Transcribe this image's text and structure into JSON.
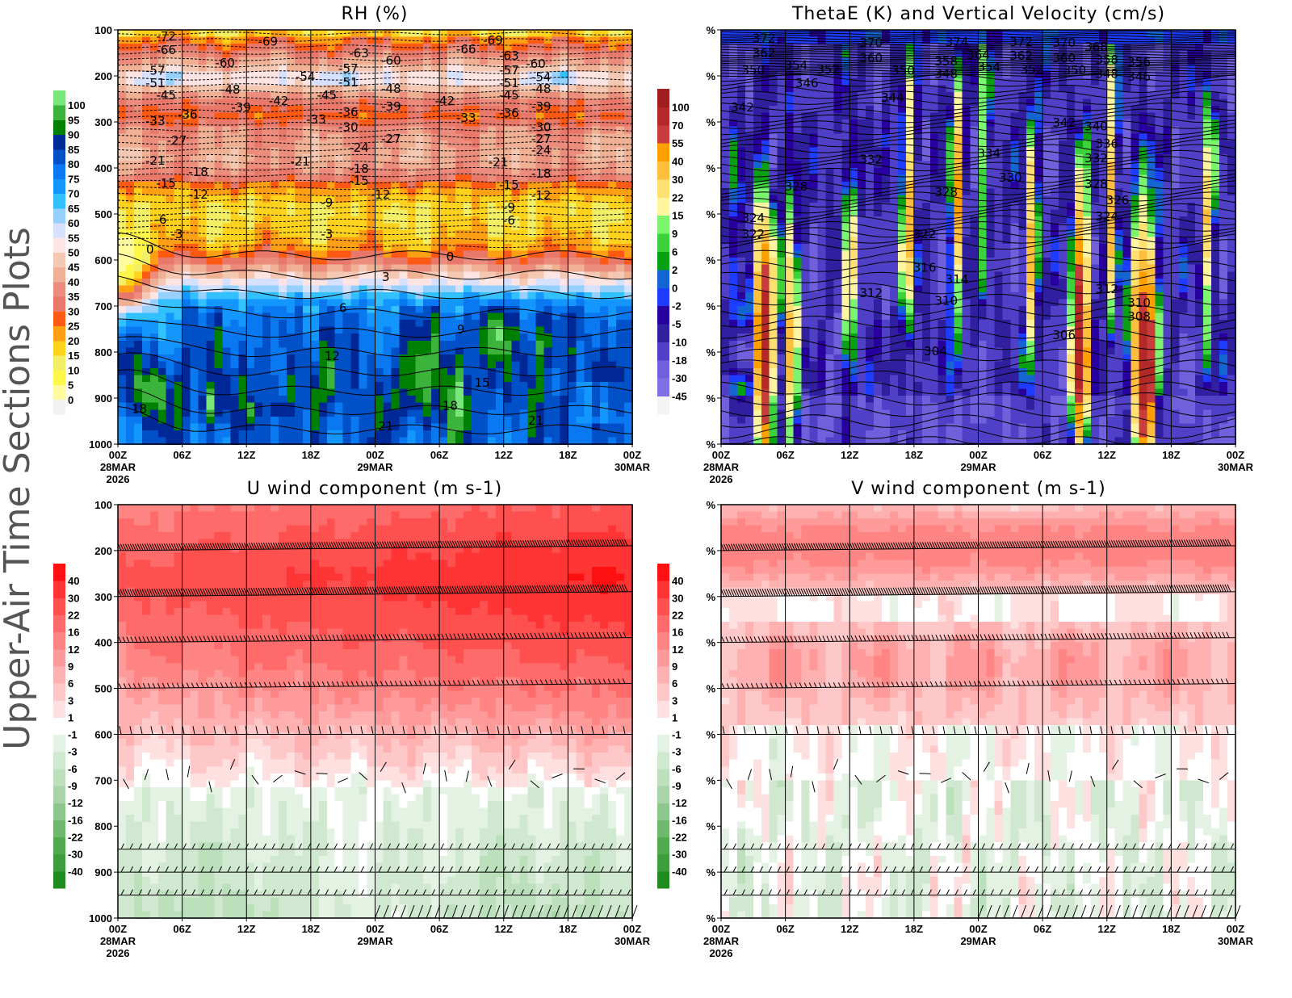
{
  "side_title": "Upper-Air Time Sections Plots",
  "x_axis": {
    "range": [
      "00Z 28MAR 2026",
      "00Z 30MAR 2026"
    ],
    "ticks": [
      {
        "time": "28MAR 00:00Z",
        "label": "00Z",
        "date": "28MAR",
        "year": "2026"
      },
      {
        "time": "28MAR 06:00Z",
        "label": "06Z"
      },
      {
        "time": "28MAR 12:00Z",
        "label": "12Z"
      },
      {
        "time": "28MAR 18:00Z",
        "label": "18Z"
      },
      {
        "time": "29MAR 00:00Z",
        "label": "00Z",
        "date": "29MAR"
      },
      {
        "time": "29MAR 06:00Z",
        "label": "06Z"
      },
      {
        "time": "29MAR 12:00Z",
        "label": "12Z"
      },
      {
        "time": "29MAR 18:00Z",
        "label": "18Z"
      },
      {
        "time": "30MAR 00:00Z",
        "label": "00Z",
        "date": "30MAR"
      }
    ]
  },
  "chart_data": [
    {
      "id": "rh",
      "type": "heatmap",
      "title": "RH (%)",
      "ylim": [
        1000,
        100
      ],
      "y_inverted": true,
      "y_ticks": [
        "100",
        "200",
        "300",
        "400",
        "500",
        "600",
        "700",
        "800",
        "900",
        "1000"
      ],
      "grid": "vertical lines every 6h",
      "colorbar": {
        "levels": [
          "0",
          "5",
          "10",
          "15",
          "20",
          "25",
          "30",
          "35",
          "40",
          "45",
          "50",
          "55",
          "60",
          "65",
          "70",
          "75",
          "80",
          "85",
          "90",
          "95",
          "100"
        ],
        "colors": [
          "#f2f2f2",
          "#fffb9e",
          "#fff64a",
          "#f2ee66",
          "#ffd21e",
          "#ffa014",
          "#ff5a14",
          "#e8786a",
          "#eb8c7c",
          "#f0b094",
          "#f5c8b4",
          "#ffe4e4",
          "#d6e0ff",
          "#96d0ff",
          "#32c0ff",
          "#1496ff",
          "#0a78f0",
          "#0050c8",
          "#002896",
          "#008000",
          "#3cb43c",
          "#78e678"
        ]
      },
      "contour_labels": [
        {
          "text": "-72",
          "time": "28MAR 04:30Z",
          "hPa": 114
        },
        {
          "text": "-66",
          "time": "28MAR 04:30Z",
          "hPa": 144
        },
        {
          "text": "-69",
          "time": "28MAR 14:00Z",
          "hPa": 125
        },
        {
          "text": "-63",
          "time": "28MAR 22:30Z",
          "hPa": 151
        },
        {
          "text": "-60",
          "time": "29MAR 01:30Z",
          "hPa": 167
        },
        {
          "text": "-66",
          "time": "29MAR 08:30Z",
          "hPa": 142
        },
        {
          "text": "-69",
          "time": "29MAR 11:00Z",
          "hPa": 123
        },
        {
          "text": "-63",
          "time": "29MAR 12:30Z",
          "hPa": 156
        },
        {
          "text": "-60",
          "time": "29MAR 15:00Z",
          "hPa": 174
        },
        {
          "text": "-57",
          "time": "28MAR 03:30Z",
          "hPa": 189
        },
        {
          "text": "-51",
          "time": "28MAR 03:30Z",
          "hPa": 216
        },
        {
          "text": "-60",
          "time": "28MAR 10:00Z",
          "hPa": 172
        },
        {
          "text": "-54",
          "time": "28MAR 17:30Z",
          "hPa": 202
        },
        {
          "text": "-57",
          "time": "28MAR 21:30Z",
          "hPa": 184
        },
        {
          "text": "-51",
          "time": "28MAR 21:30Z",
          "hPa": 214
        },
        {
          "text": "-48",
          "time": "28MAR 10:30Z",
          "hPa": 230
        },
        {
          "text": "-48",
          "time": "29MAR 01:30Z",
          "hPa": 228
        },
        {
          "text": "-57",
          "time": "29MAR 12:30Z",
          "hPa": 188
        },
        {
          "text": "-54",
          "time": "29MAR 15:30Z",
          "hPa": 203
        },
        {
          "text": "-51",
          "time": "29MAR 12:30Z",
          "hPa": 216
        },
        {
          "text": "-48",
          "time": "29MAR 15:30Z",
          "hPa": 228
        },
        {
          "text": "-45",
          "time": "28MAR 04:30Z",
          "hPa": 242
        },
        {
          "text": "-45",
          "time": "28MAR 19:30Z",
          "hPa": 242
        },
        {
          "text": "-45",
          "time": "29MAR 12:30Z",
          "hPa": 242
        },
        {
          "text": "-42",
          "time": "28MAR 15:00Z",
          "hPa": 254
        },
        {
          "text": "-42",
          "time": "29MAR 06:30Z",
          "hPa": 254
        },
        {
          "text": "-39",
          "time": "28MAR 11:30Z",
          "hPa": 268
        },
        {
          "text": "-39",
          "time": "29MAR 01:30Z",
          "hPa": 267
        },
        {
          "text": "-39",
          "time": "29MAR 15:30Z",
          "hPa": 267
        },
        {
          "text": "-36",
          "time": "28MAR 06:30Z",
          "hPa": 284
        },
        {
          "text": "-36",
          "time": "28MAR 21:30Z",
          "hPa": 279
        },
        {
          "text": "-36",
          "time": "29MAR 12:30Z",
          "hPa": 281
        },
        {
          "text": "-33",
          "time": "28MAR 03:30Z",
          "hPa": 298
        },
        {
          "text": "-33",
          "time": "28MAR 18:30Z",
          "hPa": 295
        },
        {
          "text": "-33",
          "time": "29MAR 08:30Z",
          "hPa": 291
        },
        {
          "text": "-30",
          "time": "28MAR 21:30Z",
          "hPa": 311
        },
        {
          "text": "-30",
          "time": "29MAR 15:30Z",
          "hPa": 311
        },
        {
          "text": "-27",
          "time": "28MAR 05:30Z",
          "hPa": 340
        },
        {
          "text": "-27",
          "time": "29MAR 01:30Z",
          "hPa": 337
        },
        {
          "text": "-27",
          "time": "29MAR 15:30Z",
          "hPa": 337
        },
        {
          "text": "-24",
          "time": "28MAR 22:30Z",
          "hPa": 356
        },
        {
          "text": "-24",
          "time": "29MAR 15:30Z",
          "hPa": 361
        },
        {
          "text": "-21",
          "time": "28MAR 03:30Z",
          "hPa": 384
        },
        {
          "text": "-21",
          "time": "28MAR 17:00Z",
          "hPa": 386
        },
        {
          "text": "-21",
          "time": "29MAR 11:30Z",
          "hPa": 388
        },
        {
          "text": "-18",
          "time": "28MAR 07:30Z",
          "hPa": 409
        },
        {
          "text": "-18",
          "time": "28MAR 22:30Z",
          "hPa": 402
        },
        {
          "text": "-18",
          "time": "29MAR 15:30Z",
          "hPa": 412
        },
        {
          "text": "-15",
          "time": "28MAR 04:30Z",
          "hPa": 433
        },
        {
          "text": "-15",
          "time": "28MAR 22:30Z",
          "hPa": 428
        },
        {
          "text": "-15",
          "time": "29MAR 12:30Z",
          "hPa": 437
        },
        {
          "text": "-12",
          "time": "28MAR 07:30Z",
          "hPa": 458
        },
        {
          "text": "-12",
          "time": "29MAR 00:30Z",
          "hPa": 458
        },
        {
          "text": "-12",
          "time": "29MAR 15:30Z",
          "hPa": 460
        },
        {
          "text": "-9",
          "time": "28MAR 19:30Z",
          "hPa": 475
        },
        {
          "text": "-9",
          "time": "29MAR 12:30Z",
          "hPa": 486
        },
        {
          "text": "-6",
          "time": "28MAR 04:00Z",
          "hPa": 512
        },
        {
          "text": "-6",
          "time": "29MAR 12:30Z",
          "hPa": 514
        },
        {
          "text": "-3",
          "time": "28MAR 05:30Z",
          "hPa": 544
        },
        {
          "text": "-3",
          "time": "28MAR 19:30Z",
          "hPa": 544
        },
        {
          "text": "0",
          "time": "28MAR 03:00Z",
          "hPa": 577
        },
        {
          "text": "0",
          "time": "29MAR 07:00Z",
          "hPa": 593
        },
        {
          "text": "3",
          "time": "29MAR 01:00Z",
          "hPa": 637
        },
        {
          "text": "6",
          "time": "28MAR 21:00Z",
          "hPa": 704
        },
        {
          "text": "9",
          "time": "29MAR 08:00Z",
          "hPa": 751
        },
        {
          "text": "12",
          "time": "28MAR 20:00Z",
          "hPa": 809
        },
        {
          "text": "15",
          "time": "29MAR 10:00Z",
          "hPa": 867
        },
        {
          "text": "18",
          "time": "28MAR 02:00Z",
          "hPa": 924
        },
        {
          "text": "18",
          "time": "29MAR 07:00Z",
          "hPa": 917
        },
        {
          "text": "21",
          "time": "29MAR 01:00Z",
          "hPa": 961
        },
        {
          "text": "21",
          "time": "29MAR 15:00Z",
          "hPa": 949
        }
      ]
    },
    {
      "id": "thetae",
      "type": "heatmap",
      "title": "ThetaE (K) and Vertical Velocity (cm/s)",
      "ylim": [
        1000,
        100
      ],
      "y_inverted": true,
      "y_ticks": [
        "%",
        "%",
        "%",
        "%",
        "%",
        "%",
        "%",
        "%",
        "%",
        "%"
      ],
      "grid": "vertical lines every 6h",
      "colorbar": {
        "levels": [
          "-45",
          "-30",
          "-18",
          "-10",
          "-5",
          "-2",
          "0",
          "2",
          "6",
          "9",
          "15",
          "22",
          "30",
          "40",
          "55",
          "70",
          "100"
        ],
        "colors": [
          "#f4f4f4",
          "#8070e6",
          "#7060dc",
          "#5040c8",
          "#3020a0",
          "#2800a0",
          "#1e3cff",
          "#1464d2",
          "#0aa014",
          "#3cd23c",
          "#7cf56e",
          "#fff5a0",
          "#ffe070",
          "#ffbe3c",
          "#ffa000",
          "#c83c3c",
          "#b42828",
          "#a01e1e"
        ]
      },
      "contour_labels": [
        {
          "text": "372",
          "time": "28MAR 04:00Z",
          "hPa": 118
        },
        {
          "text": "362",
          "time": "28MAR 04:00Z",
          "hPa": 151
        },
        {
          "text": "350",
          "time": "28MAR 03:00Z",
          "hPa": 188
        },
        {
          "text": "354",
          "time": "28MAR 07:00Z",
          "hPa": 177
        },
        {
          "text": "352",
          "time": "28MAR 10:00Z",
          "hPa": 186
        },
        {
          "text": "346",
          "time": "28MAR 08:00Z",
          "hPa": 216
        },
        {
          "text": "370",
          "time": "28MAR 14:00Z",
          "hPa": 128
        },
        {
          "text": "360",
          "time": "28MAR 14:00Z",
          "hPa": 161
        },
        {
          "text": "350",
          "time": "28MAR 17:00Z",
          "hPa": 189
        },
        {
          "text": "374",
          "time": "28MAR 22:00Z",
          "hPa": 126
        },
        {
          "text": "358",
          "time": "28MAR 21:00Z",
          "hPa": 168
        },
        {
          "text": "348",
          "time": "28MAR 21:00Z",
          "hPa": 196
        },
        {
          "text": "364",
          "time": "29MAR 00:00Z",
          "hPa": 154
        },
        {
          "text": "354",
          "time": "29MAR 01:00Z",
          "hPa": 181
        },
        {
          "text": "372",
          "time": "29MAR 04:00Z",
          "hPa": 126
        },
        {
          "text": "362",
          "time": "29MAR 04:00Z",
          "hPa": 156
        },
        {
          "text": "352",
          "time": "29MAR 05:00Z",
          "hPa": 186
        },
        {
          "text": "370",
          "time": "29MAR 08:00Z",
          "hPa": 128
        },
        {
          "text": "360",
          "time": "29MAR 08:00Z",
          "hPa": 161
        },
        {
          "text": "350",
          "time": "29MAR 09:00Z",
          "hPa": 188
        },
        {
          "text": "368",
          "time": "29MAR 11:00Z",
          "hPa": 137
        },
        {
          "text": "358",
          "time": "29MAR 12:00Z",
          "hPa": 165
        },
        {
          "text": "348",
          "time": "29MAR 12:00Z",
          "hPa": 196
        },
        {
          "text": "356",
          "time": "29MAR 15:00Z",
          "hPa": 170
        },
        {
          "text": "346",
          "time": "29MAR 15:00Z",
          "hPa": 202
        },
        {
          "text": "342",
          "time": "28MAR 02:00Z",
          "hPa": 268
        },
        {
          "text": "344",
          "time": "28MAR 16:00Z",
          "hPa": 247
        },
        {
          "text": "342",
          "time": "29MAR 08:00Z",
          "hPa": 302
        },
        {
          "text": "340",
          "time": "29MAR 11:00Z",
          "hPa": 310
        },
        {
          "text": "336",
          "time": "29MAR 12:00Z",
          "hPa": 347
        },
        {
          "text": "334",
          "time": "29MAR 01:00Z",
          "hPa": 368
        },
        {
          "text": "332",
          "time": "28MAR 14:00Z",
          "hPa": 382
        },
        {
          "text": "332",
          "time": "29MAR 11:00Z",
          "hPa": 379
        },
        {
          "text": "330",
          "time": "29MAR 03:00Z",
          "hPa": 421
        },
        {
          "text": "328",
          "time": "28MAR 07:00Z",
          "hPa": 440
        },
        {
          "text": "328",
          "time": "28MAR 21:00Z",
          "hPa": 453
        },
        {
          "text": "328",
          "time": "29MAR 11:00Z",
          "hPa": 435
        },
        {
          "text": "326",
          "time": "29MAR 13:00Z",
          "hPa": 470
        },
        {
          "text": "324",
          "time": "28MAR 03:00Z",
          "hPa": 509
        },
        {
          "text": "324",
          "time": "29MAR 12:00Z",
          "hPa": 505
        },
        {
          "text": "322",
          "time": "28MAR 03:00Z",
          "hPa": 544
        },
        {
          "text": "322",
          "time": "28MAR 19:00Z",
          "hPa": 544
        },
        {
          "text": "316",
          "time": "28MAR 19:00Z",
          "hPa": 617
        },
        {
          "text": "314",
          "time": "28MAR 22:00Z",
          "hPa": 642
        },
        {
          "text": "312",
          "time": "28MAR 14:00Z",
          "hPa": 672
        },
        {
          "text": "312",
          "time": "29MAR 12:00Z",
          "hPa": 663
        },
        {
          "text": "310",
          "time": "28MAR 21:00Z",
          "hPa": 689
        },
        {
          "text": "310",
          "time": "29MAR 15:00Z",
          "hPa": 693
        },
        {
          "text": "308",
          "time": "29MAR 15:00Z",
          "hPa": 723
        },
        {
          "text": "306",
          "time": "29MAR 08:00Z",
          "hPa": 763
        },
        {
          "text": "304",
          "time": "28MAR 20:00Z",
          "hPa": 798
        }
      ]
    },
    {
      "id": "u",
      "type": "heatmap",
      "title": "U wind component (m s-1)",
      "ylim": [
        1000,
        100
      ],
      "y_inverted": true,
      "y_ticks": [
        "100",
        "200",
        "300",
        "400",
        "500",
        "600",
        "700",
        "800",
        "900",
        "1000"
      ],
      "grid": "vertical lines every 6h",
      "overlay": "wind barbs",
      "colorbar": {
        "levels": [
          "-40",
          "-30",
          "-22",
          "-16",
          "-12",
          "-9",
          "-6",
          "-3",
          "-1",
          "1",
          "3",
          "6",
          "9",
          "12",
          "16",
          "22",
          "30",
          "40"
        ],
        "colors": [
          "#1e8c1e",
          "#3c9e3c",
          "#50aa50",
          "#6eb96e",
          "#8cc88c",
          "#a8d4a8",
          "#bcdfbc",
          "#d0e8d0",
          "#e4f2e4",
          "#ffffff",
          "#ffe0e0",
          "#ffc8c8",
          "#ffb0b0",
          "#ff9a9a",
          "#ff8484",
          "#ff6a6a",
          "#ff5050",
          "#ff3434",
          "#ff1010"
        ]
      },
      "contour_labels": []
    },
    {
      "id": "v",
      "type": "heatmap",
      "title": "V wind component (m s-1)",
      "ylim": [
        1000,
        100
      ],
      "y_inverted": true,
      "y_ticks": [
        "%",
        "%",
        "%",
        "%",
        "%",
        "%",
        "%",
        "%",
        "%",
        "%"
      ],
      "grid": "vertical lines every 6h",
      "overlay": "wind barbs",
      "colorbar": {
        "levels": [
          "-40",
          "-30",
          "-22",
          "-16",
          "-12",
          "-9",
          "-6",
          "-3",
          "-1",
          "1",
          "3",
          "6",
          "9",
          "12",
          "16",
          "22",
          "30",
          "40"
        ],
        "colors": [
          "#1e8c1e",
          "#3c9e3c",
          "#50aa50",
          "#6eb96e",
          "#8cc88c",
          "#a8d4a8",
          "#bcdfbc",
          "#d0e8d0",
          "#e4f2e4",
          "#ffffff",
          "#ffe0e0",
          "#ffc8c8",
          "#ffb0b0",
          "#ff9a9a",
          "#ff8484",
          "#ff6a6a",
          "#ff5050",
          "#ff3434",
          "#ff1010"
        ]
      },
      "contour_labels": []
    }
  ]
}
